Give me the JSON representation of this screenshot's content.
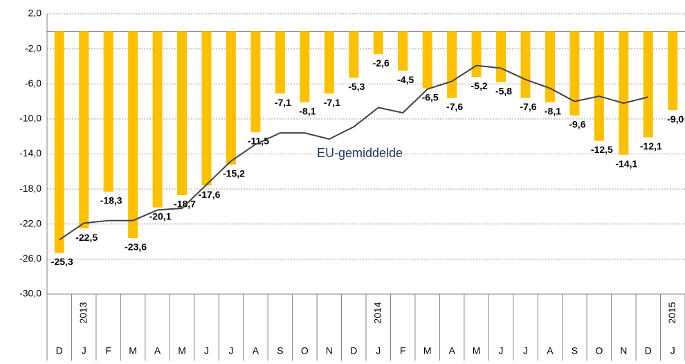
{
  "chart_data": {
    "type": "bar",
    "categories": [
      "D",
      "J",
      "F",
      "M",
      "A",
      "M",
      "J",
      "J",
      "A",
      "S",
      "O",
      "N",
      "D",
      "J",
      "F",
      "M",
      "A",
      "M",
      "J",
      "J",
      "A",
      "S",
      "O",
      "N",
      "D",
      "J"
    ],
    "years": [
      null,
      "2013",
      null,
      null,
      null,
      null,
      null,
      null,
      null,
      null,
      null,
      null,
      null,
      "2014",
      null,
      null,
      null,
      null,
      null,
      null,
      null,
      null,
      null,
      null,
      null,
      "2015"
    ],
    "series": [
      {
        "type": "bar",
        "color": "#ffc000",
        "values": [
          -25.3,
          -22.5,
          -18.3,
          -23.6,
          -20.1,
          -18.7,
          -17.6,
          -15.2,
          -11.5,
          -7.1,
          -8.1,
          -7.1,
          -5.3,
          -2.6,
          -4.5,
          -6.5,
          -7.6,
          -5.2,
          -5.8,
          -7.6,
          -8.1,
          -9.6,
          -12.5,
          -14.1,
          -12.1,
          -9.0
        ],
        "value_labels": [
          "-25,3",
          "-22,5",
          "-18,3",
          "-23,6",
          "-20,1",
          "-18,7",
          "-17,6",
          "-15,2",
          "-11,5",
          "-7,1",
          "-8,1",
          "-7,1",
          "-5,3",
          "-2,6",
          "-4,5",
          "-6,5",
          "-7,6",
          "-5,2",
          "-5,8",
          "-7,6",
          "-8,1",
          "-9,6",
          "-12,5",
          "-14,1",
          "-12,1",
          "-9,0"
        ]
      },
      {
        "type": "line",
        "name": "EU-gemiddelde",
        "color": "#404040",
        "values": [
          -23.8,
          -21.9,
          -21.6,
          -21.6,
          -20.4,
          -20.2,
          -17.5,
          -14.8,
          -12.9,
          -11.6,
          -11.6,
          -12.3,
          -10.9,
          -8.7,
          -9.3,
          -6.6,
          -5.7,
          -3.9,
          -4.2,
          -5.5,
          -6.5,
          -8.0,
          -7.4,
          -8.2,
          -7.5,
          null
        ]
      }
    ],
    "ylim": [
      -30,
      2
    ],
    "yticks": [
      {
        "value": 2,
        "label": "2,0"
      },
      {
        "value": -2,
        "label": "-2,0"
      },
      {
        "value": -6,
        "label": "-6,0"
      },
      {
        "value": -10,
        "label": "-10,0"
      },
      {
        "value": -14,
        "label": "-14,0"
      },
      {
        "value": -18,
        "label": "-18,0"
      },
      {
        "value": -22,
        "label": "-22,0"
      },
      {
        "value": -26,
        "label": "-26,0"
      },
      {
        "value": -30,
        "label": "-30,0"
      }
    ],
    "grid": true
  }
}
